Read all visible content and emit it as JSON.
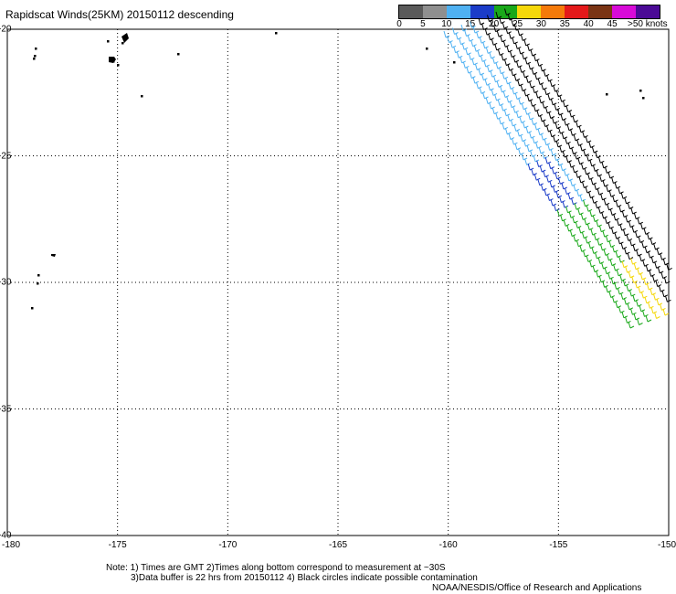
{
  "title": "Rapidscat Winds(25KM) 20150112 descending",
  "colorbar": {
    "labels": [
      "0",
      "5",
      "10",
      "15",
      "20",
      "25",
      "30",
      "35",
      "40",
      "45",
      ">50 knots"
    ],
    "colors": [
      "#5a5a5a",
      "#8f8f8f",
      "#4fb1f2",
      "#1b3cc8",
      "#19a819",
      "#f5d80a",
      "#f57a0a",
      "#e4191a",
      "#7a3414",
      "#d80ad8",
      "#4b0a96"
    ]
  },
  "map": {
    "lat_labels": [
      "-20",
      "-25",
      "-30",
      "-35",
      "-40"
    ],
    "lon_labels": [
      "-180",
      "-175",
      "-170",
      "-165",
      "-160",
      "-155",
      "-150"
    ],
    "lat_range": [
      -40,
      -20
    ],
    "lon_range": [
      -180,
      -150
    ],
    "grid": "dotted"
  },
  "notes": {
    "line1": "Note: 1) Times are GMT 2)Times along bottom correspond to measurement at ~30S",
    "line2": "3)Data buffer is 22 hrs from 20150112 4) Black circles indicate possible contamination",
    "credit": "NOAA/NESDIS/Office of Research and Applications"
  }
}
